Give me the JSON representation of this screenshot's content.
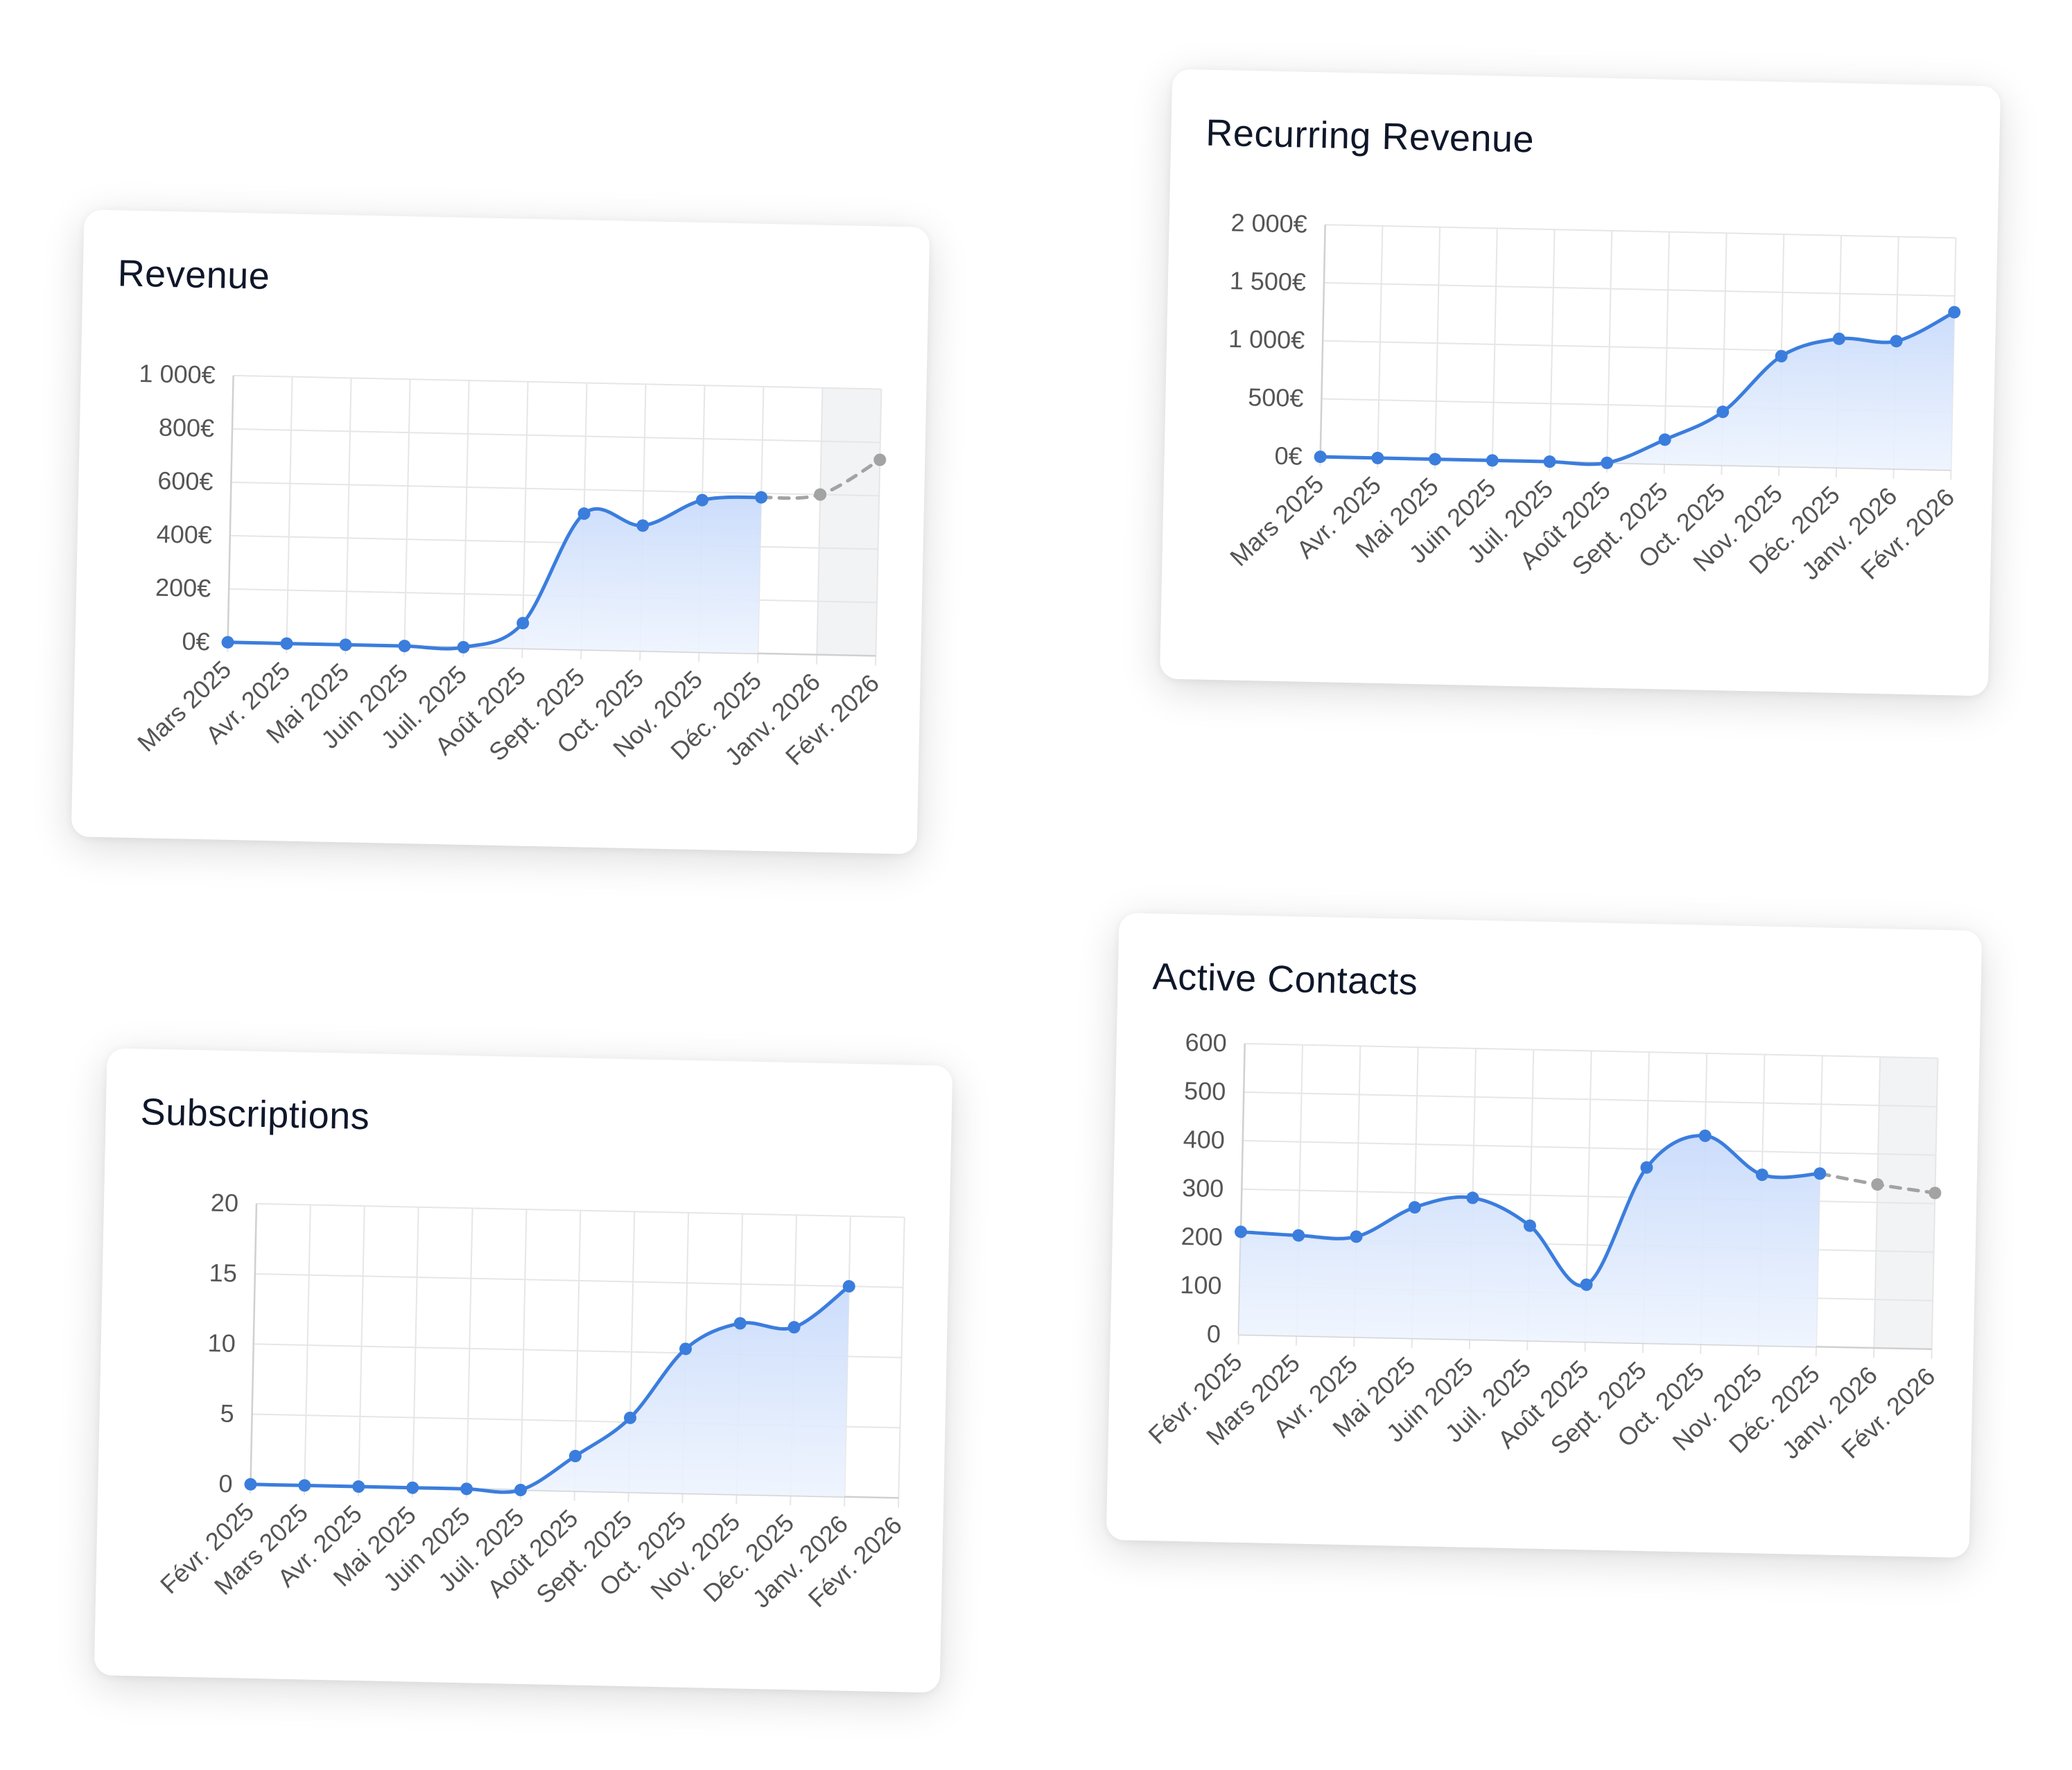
{
  "colors": {
    "line": "#3b7ddd",
    "projection": "#a3a3a3",
    "fill_top": "#c9dbfb",
    "fill_bottom": "#eef4fe"
  },
  "chart_data": [
    {
      "id": "revenue",
      "type": "line",
      "title": "Revenue",
      "categories": [
        "Mars 2025",
        "Avr. 2025",
        "Mai 2025",
        "Juin 2025",
        "Juil. 2025",
        "Août 2025",
        "Sept. 2025",
        "Oct. 2025",
        "Nov. 2025",
        "Déc. 2025",
        "Janv. 2026",
        "Févr. 2026"
      ],
      "values": [
        0,
        0,
        0,
        0,
        0,
        95,
        510,
        470,
        570,
        585,
        null,
        null
      ],
      "projection": [
        null,
        null,
        null,
        null,
        null,
        null,
        null,
        null,
        null,
        585,
        600,
        735
      ],
      "ylim": [
        0,
        1000
      ],
      "yticks": [
        0,
        200,
        400,
        600,
        800,
        1000
      ],
      "ytick_labels": [
        "0€",
        "200€",
        "400€",
        "600€",
        "800€",
        "1 000€"
      ],
      "xlabel": "",
      "ylabel": "",
      "grid": true
    },
    {
      "id": "recurring",
      "type": "line",
      "title": "Recurring Revenue",
      "categories": [
        "Mars 2025",
        "Avr. 2025",
        "Mai 2025",
        "Juin 2025",
        "Juil. 2025",
        "Août 2025",
        "Sept. 2025",
        "Oct. 2025",
        "Nov. 2025",
        "Déc. 2025",
        "Janv. 2026",
        "Févr. 2026"
      ],
      "values": [
        0,
        0,
        0,
        0,
        0,
        0,
        210,
        460,
        950,
        1110,
        1100,
        1360
      ],
      "projection": null,
      "ylim": [
        0,
        2000
      ],
      "yticks": [
        0,
        500,
        1000,
        1500,
        2000
      ],
      "ytick_labels": [
        "0€",
        "500€",
        "1 000€",
        "1 500€",
        "2 000€"
      ],
      "xlabel": "",
      "ylabel": "",
      "grid": true
    },
    {
      "id": "subscriptions",
      "type": "line",
      "title": "Subscriptions",
      "categories": [
        "Févr. 2025",
        "Mars 2025",
        "Avr. 2025",
        "Mai 2025",
        "Juin 2025",
        "Juil. 2025",
        "Août 2025",
        "Sept. 2025",
        "Oct. 2025",
        "Nov. 2025",
        "Déc. 2025",
        "Janv. 2026",
        "Févr. 2026"
      ],
      "values": [
        0,
        0,
        0,
        0,
        0,
        0,
        2.5,
        5.3,
        10.3,
        12.2,
        12,
        15,
        null
      ],
      "projection": null,
      "ylim": [
        0,
        20
      ],
      "yticks": [
        0,
        5,
        10,
        15,
        20
      ],
      "ytick_labels": [
        "0",
        "5",
        "10",
        "15",
        "20"
      ],
      "xlabel": "",
      "ylabel": "",
      "grid": true
    },
    {
      "id": "contacts",
      "type": "line",
      "title": "Active Contacts",
      "categories": [
        "Févr. 2025",
        "Mars 2025",
        "Avr. 2025",
        "Mai 2025",
        "Juin 2025",
        "Juil. 2025",
        "Août 2025",
        "Sept. 2025",
        "Oct. 2025",
        "Nov. 2025",
        "Déc. 2025",
        "Janv. 2026",
        "Févr. 2026"
      ],
      "values": [
        212,
        207,
        207,
        270,
        292,
        237,
        118,
        362,
        430,
        352,
        357,
        null,
        null
      ],
      "projection": [
        null,
        null,
        null,
        null,
        null,
        null,
        null,
        null,
        null,
        null,
        357,
        337,
        322
      ],
      "ylim": [
        0,
        600
      ],
      "yticks": [
        0,
        100,
        200,
        300,
        400,
        500,
        600
      ],
      "ytick_labels": [
        "0",
        "100",
        "200",
        "300",
        "400",
        "500",
        "600"
      ],
      "xlabel": "",
      "ylabel": "",
      "grid": true
    }
  ]
}
